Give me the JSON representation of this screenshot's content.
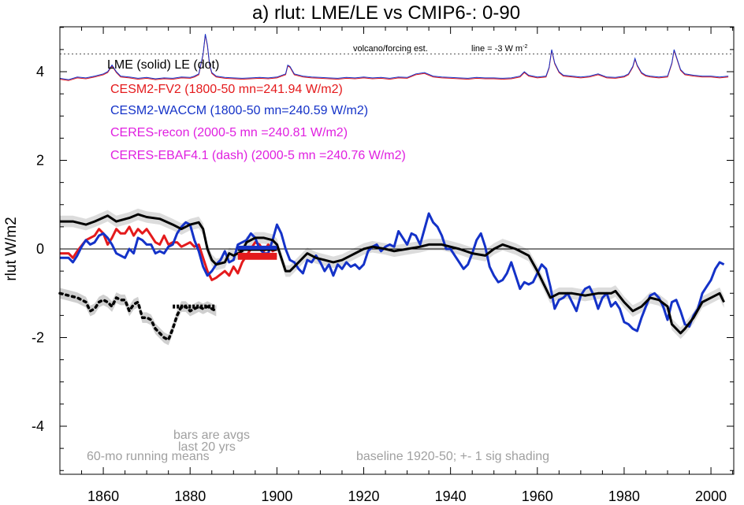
{
  "chart_data": {
    "type": "line",
    "title": "a) rlut: LME/LE vs CMIP6-: 0-90",
    "ylabel": "rlut W/m2",
    "xlabel": "",
    "xlim": [
      1850,
      2005
    ],
    "ylim": [
      -5,
      5
    ],
    "xticks": [
      1860,
      1880,
      1900,
      1920,
      1940,
      1960,
      1980,
      2000
    ],
    "yticks": [
      -4,
      -2,
      0,
      2,
      4
    ],
    "grid": false,
    "legend": [
      {
        "label": "LME (solid)   LE (dot)",
        "color": "#000000"
      },
      {
        "label": "CESM2-FV2 (1800-50 mn=241.94 W/m2)",
        "color": "#e41a1c"
      },
      {
        "label": "CESM2-WACCM (1800-50 mn=240.59 W/m2)",
        "color": "#1432c8"
      },
      {
        "label": "CERES-recon (2000-5 mn =240.81 W/m2)",
        "color": "#e020e0"
      },
      {
        "label": "CERES-EBAF4.1 (dash) (2000-5 mn =240.76 W/m2)",
        "color": "#e020e0"
      }
    ],
    "annotations": {
      "volcano": "volcano/forcing est.",
      "line_note": "line = -3 W m",
      "line_note_sup": "-2",
      "bars": [
        "bars are avgs",
        "last 20 yrs"
      ],
      "running": "60-mo running means",
      "baseline": "baseline 1920-50; +- 1 sig shading"
    },
    "reference_lines": {
      "zero": 0,
      "volcano_dotted": 4.4
    },
    "series": [
      {
        "name": "LME (solid)",
        "color": "#000000",
        "style": "solid",
        "x": [
          1850,
          1853,
          1856,
          1858,
          1861,
          1863,
          1866,
          1868,
          1870,
          1873,
          1876,
          1878,
          1880,
          1882,
          1883,
          1884,
          1885,
          1886,
          1888,
          1889,
          1890,
          1892,
          1893,
          1895,
          1897,
          1899,
          1900,
          1901,
          1902,
          1903,
          1905,
          1907,
          1909,
          1911,
          1913,
          1915,
          1917,
          1920,
          1922,
          1925,
          1927,
          1930,
          1933,
          1935,
          1938,
          1940,
          1942,
          1945,
          1948,
          1950,
          1952,
          1955,
          1958,
          1960,
          1962,
          1963,
          1965,
          1968,
          1971,
          1974,
          1977,
          1978,
          1980,
          1982,
          1984,
          1986,
          1988,
          1990,
          1991,
          1993,
          1994,
          1996,
          1998,
          2000,
          2002,
          2003
        ],
        "y": [
          0.62,
          0.62,
          0.55,
          0.62,
          0.75,
          0.62,
          0.7,
          0.78,
          0.72,
          0.68,
          0.55,
          0.45,
          0.55,
          0.6,
          0.45,
          0.0,
          -0.25,
          -0.35,
          -0.3,
          -0.1,
          -0.15,
          -0.05,
          0.15,
          0.25,
          0.25,
          0.2,
          0.1,
          -0.2,
          -0.5,
          -0.5,
          -0.3,
          -0.1,
          -0.2,
          -0.25,
          -0.3,
          -0.25,
          -0.15,
          0.0,
          0.05,
          0.0,
          -0.05,
          0.0,
          0.05,
          0.1,
          0.1,
          0.05,
          0.0,
          -0.1,
          -0.15,
          0.0,
          0.1,
          0.0,
          -0.15,
          -0.5,
          -0.9,
          -1.1,
          -1.0,
          -1.0,
          -1.05,
          -1.0,
          -1.0,
          -0.95,
          -1.2,
          -1.4,
          -1.3,
          -1.1,
          -1.15,
          -1.3,
          -1.7,
          -1.9,
          -1.8,
          -1.55,
          -1.2,
          -1.1,
          -1.0,
          -1.2
        ]
      },
      {
        "name": "LE (dot)",
        "color": "#000000",
        "style": "dotted",
        "x": [
          1850,
          1852,
          1854,
          1856,
          1857,
          1858,
          1859,
          1860,
          1861,
          1862,
          1863,
          1864,
          1865,
          1866,
          1867,
          1868,
          1869,
          1870,
          1871,
          1872,
          1873,
          1874,
          1875,
          1876,
          1877,
          1878,
          1879,
          1880,
          1881,
          1882,
          1883,
          1884,
          1885,
          1886
        ],
        "y": [
          -1.0,
          -1.05,
          -1.1,
          -1.2,
          -1.4,
          -1.35,
          -1.2,
          -1.15,
          -1.2,
          -1.3,
          -1.1,
          -1.15,
          -1.15,
          -1.4,
          -1.25,
          -1.2,
          -1.55,
          -1.55,
          -1.6,
          -1.8,
          -1.9,
          -2.0,
          -2.05,
          -1.8,
          -1.5,
          -1.3,
          -1.3,
          -1.4,
          -1.35,
          -1.3,
          -1.35,
          -1.3,
          -1.35,
          -1.4
        ]
      },
      {
        "name": "CESM2-FV2 (1800-50 mn=241.94 W/m2)",
        "color": "#e41a1c",
        "style": "solid",
        "x": [
          1850,
          1852,
          1853,
          1854,
          1856,
          1858,
          1859,
          1860,
          1861,
          1862,
          1863,
          1864,
          1865,
          1866,
          1867,
          1868,
          1869,
          1870,
          1871,
          1872,
          1873,
          1874,
          1875,
          1876,
          1877,
          1878,
          1879,
          1880,
          1881,
          1882,
          1883,
          1884,
          1885,
          1886,
          1888,
          1889,
          1890,
          1891,
          1892,
          1893,
          1894,
          1895,
          1896,
          1897,
          1898,
          1899,
          1900
        ],
        "y": [
          -0.1,
          -0.1,
          -0.2,
          -0.05,
          0.2,
          0.3,
          0.45,
          0.35,
          0.1,
          0.25,
          0.45,
          0.35,
          0.35,
          0.5,
          0.3,
          0.45,
          0.35,
          0.45,
          0.3,
          0.15,
          0.1,
          0.3,
          0.1,
          0.15,
          0.15,
          0.05,
          0.1,
          0.15,
          0.05,
          0.1,
          -0.2,
          -0.5,
          -0.7,
          -0.65,
          -0.5,
          -0.6,
          -0.4,
          -0.55,
          -0.3,
          -0.15,
          0.0,
          0.15,
          0.1,
          -0.05,
          0.1,
          -0.05,
          0.0
        ]
      },
      {
        "name": "CESM2-WACCM (1800-50 mn=240.59 W/m2)",
        "color": "#1432c8",
        "style": "solid",
        "x": [
          1850,
          1852,
          1853,
          1854,
          1855,
          1856,
          1857,
          1858,
          1859,
          1860,
          1861,
          1862,
          1863,
          1864,
          1865,
          1866,
          1867,
          1868,
          1869,
          1870,
          1871,
          1872,
          1873,
          1874,
          1875,
          1876,
          1877,
          1878,
          1879,
          1880,
          1881,
          1882,
          1883,
          1884,
          1885,
          1886,
          1887,
          1888,
          1889,
          1890,
          1891,
          1892,
          1893,
          1894,
          1895,
          1896,
          1897,
          1898,
          1899,
          1900,
          1901,
          1902,
          1903,
          1904,
          1905,
          1906,
          1907,
          1908,
          1909,
          1910,
          1911,
          1912,
          1913,
          1914,
          1915,
          1916,
          1917,
          1918,
          1919,
          1920,
          1921,
          1922,
          1923,
          1924,
          1925,
          1926,
          1927,
          1928,
          1929,
          1930,
          1931,
          1932,
          1933,
          1934,
          1935,
          1936,
          1937,
          1938,
          1939,
          1940,
          1941,
          1942,
          1943,
          1944,
          1945,
          1946,
          1947,
          1948,
          1949,
          1950,
          1951,
          1952,
          1953,
          1954,
          1955,
          1956,
          1957,
          1958,
          1959,
          1960,
          1961,
          1962,
          1963,
          1964,
          1965,
          1966,
          1967,
          1968,
          1969,
          1970,
          1971,
          1972,
          1973,
          1974,
          1975,
          1976,
          1977,
          1978,
          1979,
          1980,
          1981,
          1982,
          1983,
          1984,
          1985,
          1986,
          1987,
          1988,
          1989,
          1990,
          1991,
          1992,
          1993,
          1994,
          1995,
          1996,
          1997,
          1998,
          1999,
          2000,
          2001,
          2002,
          2003
        ],
        "y": [
          -0.2,
          -0.2,
          -0.3,
          -0.15,
          0.05,
          0.2,
          0.1,
          0.15,
          0.3,
          0.35,
          0.25,
          0.1,
          -0.1,
          -0.15,
          -0.2,
          0.0,
          -0.1,
          0.25,
          0.2,
          0.1,
          0.1,
          -0.1,
          -0.05,
          -0.1,
          0.05,
          0.1,
          0.35,
          0.5,
          0.6,
          0.55,
          0.2,
          -0.05,
          -0.4,
          -0.6,
          -0.5,
          -0.35,
          -0.25,
          -0.05,
          -0.3,
          -0.25,
          0.1,
          0.15,
          0.2,
          0.35,
          0.25,
          0.0,
          -0.1,
          -0.1,
          0.2,
          0.55,
          0.35,
          0.0,
          -0.25,
          -0.3,
          -0.45,
          -0.55,
          -0.25,
          -0.3,
          -0.15,
          -0.3,
          -0.5,
          -0.35,
          -0.6,
          -0.35,
          -0.45,
          -0.3,
          -0.4,
          -0.35,
          -0.45,
          -0.35,
          -0.05,
          0.05,
          0.1,
          -0.05,
          0.05,
          0.1,
          0.05,
          0.4,
          0.25,
          0.1,
          0.35,
          0.3,
          0.1,
          0.45,
          0.8,
          0.6,
          0.5,
          0.3,
          0.0,
          0.0,
          -0.15,
          -0.3,
          -0.45,
          -0.35,
          -0.1,
          0.2,
          0.35,
          0.05,
          -0.4,
          -0.6,
          -0.75,
          -0.7,
          -0.55,
          -0.3,
          -0.6,
          -0.9,
          -0.75,
          -0.8,
          -0.75,
          -0.55,
          -0.35,
          -0.45,
          -0.85,
          -1.35,
          -1.15,
          -1.1,
          -1.0,
          -1.2,
          -1.4,
          -1.05,
          -0.9,
          -0.85,
          -1.05,
          -1.35,
          -1.1,
          -1.0,
          -1.3,
          -1.2,
          -1.35,
          -1.65,
          -1.7,
          -1.8,
          -1.85,
          -1.55,
          -1.3,
          -1.05,
          -1.0,
          -1.1,
          -1.3,
          -1.6,
          -1.2,
          -1.15,
          -1.4,
          -1.7,
          -1.75,
          -1.5,
          -1.35,
          -1.0,
          -0.85,
          -0.7,
          -0.45,
          -0.3,
          -0.35
        ]
      }
    ],
    "volcano_series": {
      "color_a": "#1432c8",
      "color_b": "#e41a1c",
      "x": [
        1850,
        1852,
        1854,
        1856,
        1858,
        1860,
        1861,
        1862,
        1863,
        1864,
        1866,
        1868,
        1870,
        1872,
        1874,
        1876,
        1878,
        1880,
        1881,
        1882,
        1883,
        1883.5,
        1884,
        1884.5,
        1885,
        1886,
        1888,
        1890,
        1892,
        1894,
        1896,
        1898,
        1900,
        1902,
        1902.5,
        1903,
        1904,
        1906,
        1908,
        1910,
        1912,
        1914,
        1916,
        1918,
        1920,
        1922,
        1924,
        1926,
        1928,
        1930,
        1932,
        1934,
        1936,
        1938,
        1940,
        1942,
        1944,
        1946,
        1948,
        1950,
        1952,
        1954,
        1956,
        1957,
        1958,
        1960,
        1962,
        1962.7,
        1963.3,
        1964,
        1965,
        1966,
        1968,
        1970,
        1972,
        1974,
        1976,
        1978,
        1980,
        1981,
        1982,
        1982.5,
        1983,
        1984,
        1985,
        1986,
        1988,
        1990,
        1991,
        1991.5,
        1992,
        1993,
        1994,
        1996,
        1998,
        2000,
        2002,
        2004
      ],
      "y": [
        3.85,
        3.82,
        3.88,
        3.86,
        3.9,
        3.95,
        4.0,
        4.15,
        4.0,
        3.9,
        3.88,
        3.85,
        3.87,
        3.84,
        3.86,
        3.85,
        3.88,
        3.87,
        3.9,
        3.95,
        4.4,
        4.85,
        4.6,
        4.15,
        3.98,
        3.9,
        3.87,
        3.86,
        3.85,
        3.86,
        3.87,
        3.86,
        3.88,
        3.95,
        4.15,
        4.12,
        3.95,
        3.9,
        3.88,
        3.87,
        3.86,
        3.85,
        3.87,
        3.86,
        3.88,
        3.86,
        3.87,
        3.85,
        3.88,
        3.87,
        3.95,
        3.98,
        3.9,
        3.88,
        3.87,
        3.86,
        3.85,
        3.87,
        3.86,
        3.86,
        3.85,
        3.86,
        3.9,
        4.0,
        3.92,
        3.88,
        3.9,
        4.1,
        4.5,
        4.2,
        4.0,
        3.92,
        3.9,
        3.88,
        3.9,
        3.95,
        3.88,
        3.87,
        3.9,
        3.95,
        4.12,
        4.3,
        4.15,
        3.98,
        3.92,
        3.9,
        3.88,
        3.9,
        4.2,
        4.5,
        4.35,
        4.05,
        3.95,
        3.92,
        3.9,
        3.9,
        3.88,
        3.9
      ]
    },
    "bars": [
      {
        "name": "CESM2-FV2",
        "color": "#e41a1c",
        "y": -0.2,
        "x0": 1891,
        "x1": 1900
      },
      {
        "name": "CESM2-FV2",
        "color": "#e41a1c",
        "y": -0.13,
        "x0": 1891,
        "x1": 1900
      },
      {
        "name": "LME",
        "color": "#000000",
        "y": 0.0,
        "x0": 1891,
        "x1": 1900
      },
      {
        "name": "CESM2-WACCM",
        "color": "#1432c8",
        "y": 0.03,
        "x0": 1891,
        "x1": 1900
      },
      {
        "name": "LE",
        "color": "#000000",
        "y": -1.3,
        "x0": 1876,
        "x1": 1886
      }
    ]
  }
}
